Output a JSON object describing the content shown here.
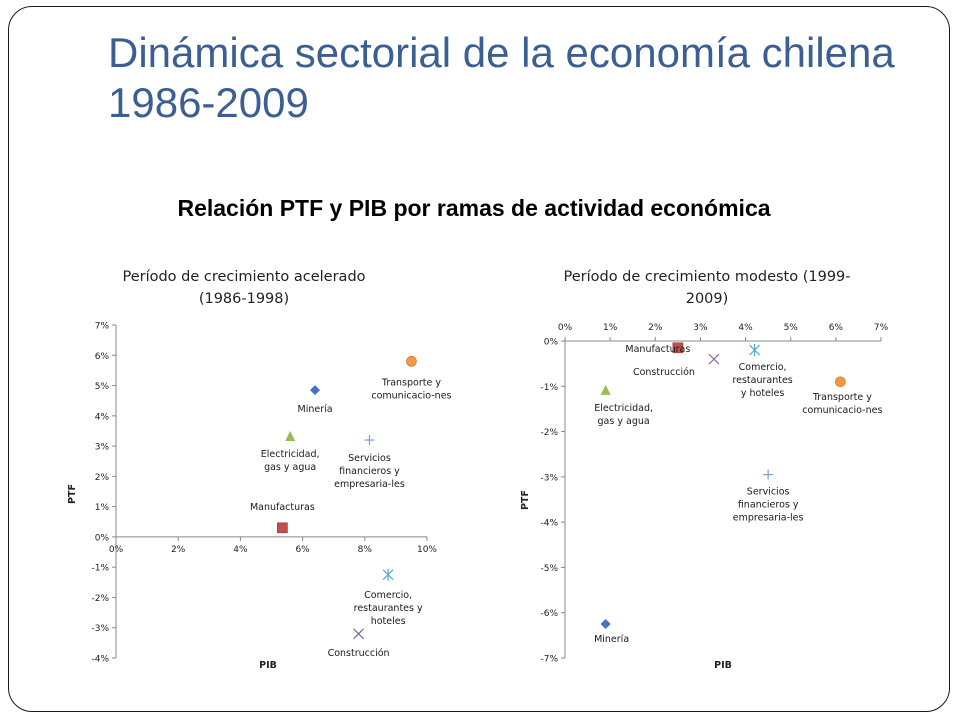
{
  "slide": {
    "title": "Dinámica sectorial de la economía chilena 1986-2009",
    "subtitle": "Relación PTF y PIB por ramas de actividad económica"
  },
  "colors": {
    "title": "#3b5f93",
    "Minería": "#4472c4",
    "Manufacturas": "#c0504d",
    "Electricidad": "#9bbb59",
    "Construcción": "#8064a2",
    "Comercio": "#4bacc6",
    "Transporte": "#f79646",
    "Servicios": "#7b9fd4"
  },
  "chart_data": [
    {
      "type": "scatter",
      "title": "Período de crecimiento acelerado (1986-1998)",
      "xlabel": "PIB",
      "ylabel": "PTF",
      "xlim": [
        0,
        10
      ],
      "ylim": [
        -4,
        7
      ],
      "x_ticks": [
        "0%",
        "2%",
        "4%",
        "6%",
        "8%",
        "10%"
      ],
      "y_ticks": [
        "7%",
        "6%",
        "5%",
        "4%",
        "3%",
        "2%",
        "1%",
        "0%",
        "-1%",
        "-2%",
        "-3%",
        "-4%"
      ],
      "grid": false,
      "legend": "none",
      "points": [
        {
          "label": "Minería",
          "x": 6.4,
          "y": 4.85,
          "marker": "diamond",
          "color": "#4472c4"
        },
        {
          "label": "Transporte y comunicacio-nes",
          "x": 9.5,
          "y": 5.8,
          "marker": "circle",
          "color": "#f79646"
        },
        {
          "label": "Electricidad, gas y agua",
          "x": 5.6,
          "y": 3.3,
          "marker": "triangle",
          "color": "#9bbb59"
        },
        {
          "label": "Servicios financieros y empresaria-les",
          "x": 8.15,
          "y": 3.2,
          "marker": "plus",
          "color": "#7b9fd4"
        },
        {
          "label": "Manufacturas",
          "x": 5.35,
          "y": 0.3,
          "marker": "square",
          "color": "#c0504d"
        },
        {
          "label": "Comercio, restaurantes y hoteles",
          "x": 8.75,
          "y": -1.25,
          "marker": "asterisk",
          "color": "#4bacc6"
        },
        {
          "label": "Construcción",
          "x": 7.8,
          "y": -3.2,
          "marker": "x",
          "color": "#8064a2"
        }
      ]
    },
    {
      "type": "scatter",
      "title": "Período de crecimiento modesto (1999-2009)",
      "xlabel": "PIB",
      "ylabel": "PTF",
      "xlim": [
        0,
        7
      ],
      "ylim": [
        -7,
        0
      ],
      "x_ticks": [
        "0%",
        "1%",
        "2%",
        "3%",
        "4%",
        "5%",
        "6%",
        "7%"
      ],
      "y_ticks": [
        "0%",
        "-1%",
        "-2%",
        "-3%",
        "-4%",
        "-5%",
        "-6%",
        "-7%"
      ],
      "grid": false,
      "legend": "none",
      "points": [
        {
          "label": "Manufacturas",
          "x": 2.5,
          "y": -0.15,
          "marker": "square",
          "color": "#c0504d"
        },
        {
          "label": "Construcción",
          "x": 3.3,
          "y": -0.4,
          "marker": "x",
          "color": "#8064a2"
        },
        {
          "label": "Comercio, restaurantes y hoteles",
          "x": 4.2,
          "y": -0.2,
          "marker": "asterisk",
          "color": "#4bacc6"
        },
        {
          "label": "Transporte y comunicacio-nes",
          "x": 6.1,
          "y": -0.9,
          "marker": "circle",
          "color": "#f79646"
        },
        {
          "label": "Electricidad, gas y agua",
          "x": 0.9,
          "y": -1.1,
          "marker": "triangle",
          "color": "#9bbb59"
        },
        {
          "label": "Servicios financieros y empresaria-les",
          "x": 4.5,
          "y": -2.95,
          "marker": "plus",
          "color": "#7b9fd4"
        },
        {
          "label": "Minería",
          "x": 0.9,
          "y": -6.25,
          "marker": "diamond",
          "color": "#4472c4"
        }
      ]
    }
  ]
}
